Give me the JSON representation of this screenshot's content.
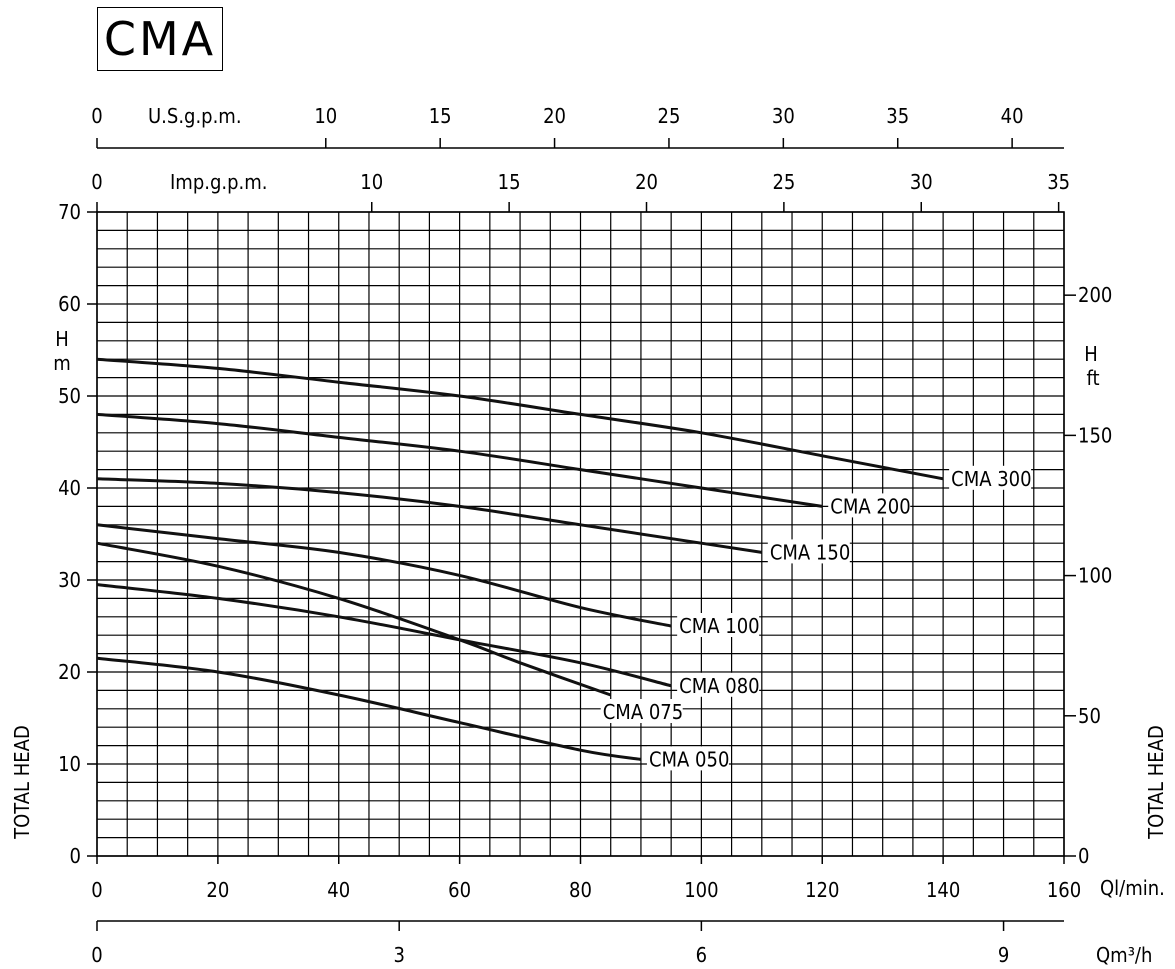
{
  "title": "CMA",
  "chart_data": {
    "type": "line",
    "xlabel": "Ql/min.",
    "ylabel": "TOTAL HEAD",
    "ylabel_left_unit": [
      "H",
      "m"
    ],
    "ylabel_right_unit": [
      "H",
      "ft"
    ],
    "xlim": [
      0,
      160
    ],
    "ylim": [
      0,
      70
    ],
    "grid": true,
    "x_ticks": [
      0,
      20,
      40,
      60,
      80,
      100,
      120,
      140,
      160
    ],
    "y_ticks": [
      0,
      10,
      20,
      30,
      40,
      50,
      60,
      70
    ],
    "ft_ticks": [
      0,
      50,
      100,
      150,
      200
    ],
    "usgpm": {
      "label": "U.S.g.p.m.",
      "ticks": [
        0,
        10,
        15,
        20,
        25,
        30,
        35,
        40
      ]
    },
    "impgpm": {
      "label": "Imp.g.p.m.",
      "ticks": [
        0,
        10,
        15,
        20,
        25,
        30,
        35
      ]
    },
    "m3h": {
      "label": "Qm³/h",
      "ticks": [
        0,
        3,
        6,
        9
      ]
    },
    "series": [
      {
        "name": "CMA 300",
        "x": [
          0,
          20,
          40,
          60,
          80,
          100,
          120,
          140
        ],
        "y": [
          54,
          53,
          51.5,
          50,
          48,
          46,
          43.5,
          41
        ]
      },
      {
        "name": "CMA 200",
        "x": [
          0,
          20,
          40,
          60,
          80,
          100,
          120
        ],
        "y": [
          48,
          47,
          45.5,
          44,
          42,
          40,
          38
        ]
      },
      {
        "name": "CMA 150",
        "x": [
          0,
          20,
          40,
          60,
          80,
          100,
          110
        ],
        "y": [
          41,
          40.5,
          39.5,
          38,
          36,
          34,
          33
        ]
      },
      {
        "name": "CMA 100",
        "x": [
          0,
          20,
          40,
          60,
          80,
          95
        ],
        "y": [
          36,
          34.5,
          33,
          30.5,
          27,
          25
        ]
      },
      {
        "name": "CMA 080",
        "x": [
          0,
          20,
          40,
          60,
          80,
          95
        ],
        "y": [
          29.5,
          28,
          26,
          23.5,
          21,
          18.5
        ]
      },
      {
        "name": "CMA 075",
        "x": [
          0,
          20,
          40,
          60,
          70,
          85
        ],
        "y": [
          34,
          31.5,
          28,
          23.5,
          21,
          17.5
        ]
      },
      {
        "name": "CMA 050",
        "x": [
          0,
          20,
          40,
          60,
          80,
          90
        ],
        "y": [
          21.5,
          20,
          17.5,
          14.5,
          11.5,
          10.5
        ]
      }
    ]
  }
}
